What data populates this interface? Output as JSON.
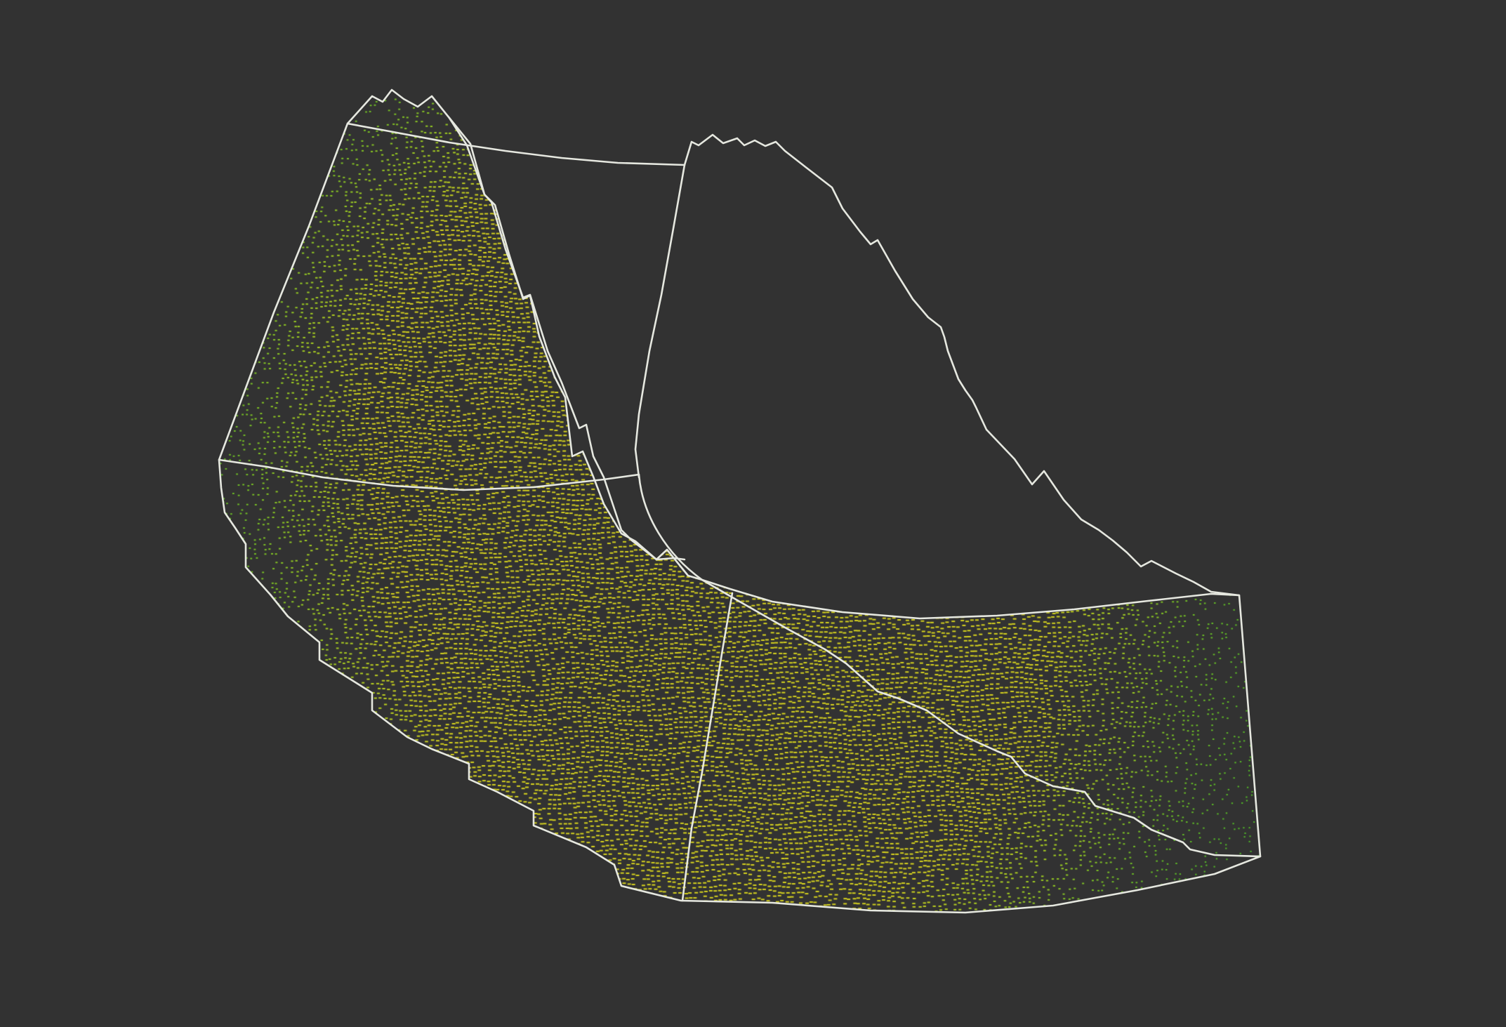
{
  "view": {
    "kind": "3d-point-cloud-viewport",
    "background_color": "#323232",
    "outline_color": "#e6e8e0",
    "point_colors": {
      "high_density": "#d6d21e",
      "mid_density": "#9ecb22",
      "low_density": "#3fae2a"
    }
  }
}
